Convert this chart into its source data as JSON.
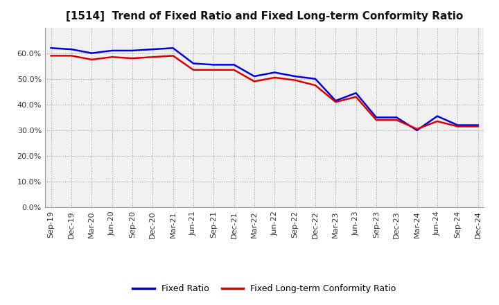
{
  "title": "[1514]  Trend of Fixed Ratio and Fixed Long-term Conformity Ratio",
  "x_labels": [
    "Sep-19",
    "Dec-19",
    "Mar-20",
    "Jun-20",
    "Sep-20",
    "Dec-20",
    "Mar-21",
    "Jun-21",
    "Sep-21",
    "Dec-21",
    "Mar-22",
    "Jun-22",
    "Sep-22",
    "Dec-22",
    "Mar-23",
    "Jun-23",
    "Sep-23",
    "Dec-23",
    "Mar-24",
    "Jun-24",
    "Sep-24",
    "Dec-24"
  ],
  "fixed_ratio": [
    62.0,
    61.5,
    60.0,
    61.0,
    61.0,
    61.5,
    62.0,
    56.0,
    55.5,
    55.5,
    51.0,
    52.5,
    51.0,
    50.0,
    41.5,
    44.5,
    35.0,
    35.0,
    30.0,
    35.5,
    32.0,
    32.0
  ],
  "fixed_ltcr": [
    59.0,
    59.0,
    57.5,
    58.5,
    58.0,
    58.5,
    59.0,
    53.5,
    53.5,
    53.5,
    49.0,
    50.5,
    49.5,
    47.5,
    41.0,
    43.0,
    34.0,
    34.0,
    30.5,
    33.5,
    31.5,
    31.5
  ],
  "fixed_ratio_color": "#0000dd",
  "fixed_ltcr_color": "#dd0000",
  "ylim": [
    0,
    70
  ],
  "yticks": [
    0,
    10,
    20,
    30,
    40,
    50,
    60
  ],
  "background_color": "#ffffff",
  "plot_bg_color": "#f0f0f0",
  "grid_color": "#999999",
  "legend_fixed_ratio": "Fixed Ratio",
  "legend_fixed_ltcr": "Fixed Long-term Conformity Ratio",
  "title_fontsize": 11,
  "tick_fontsize": 8,
  "legend_fontsize": 9
}
